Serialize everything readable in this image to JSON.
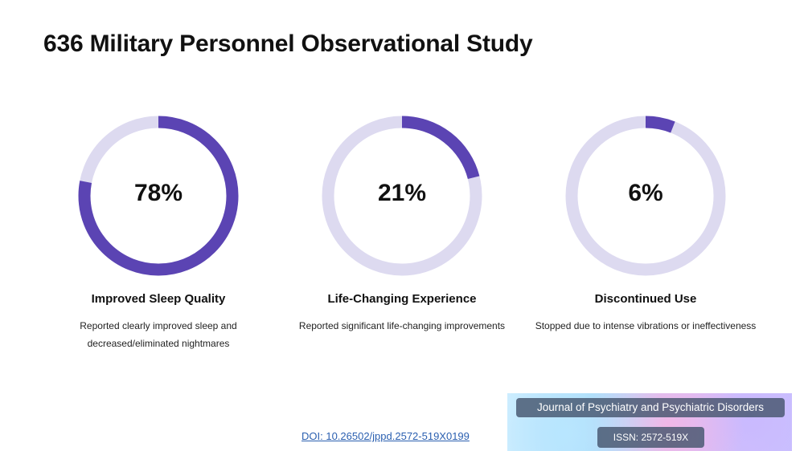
{
  "title": "636 Military Personnel Observational Study",
  "chart_data": {
    "type": "pie",
    "style": "donut",
    "items": [
      {
        "value": 78,
        "display": "78%",
        "label": "Improved Sleep Quality",
        "description": "Reported clearly improved sleep and decreased/eliminated nightmares"
      },
      {
        "value": 21,
        "display": "21%",
        "label": "Life-Changing Experience",
        "description": "Reported significant life-changing improvements"
      },
      {
        "value": 6,
        "display": "6%",
        "label": "Discontinued Use",
        "description": "Stopped due to intense vibrations or ineffectiveness"
      }
    ]
  },
  "colors": {
    "accent": "#5b44b3",
    "track": "#dddaf0"
  },
  "footer": {
    "doi": "DOI: 10.26502/jppd.2572-519X0199",
    "journal": "Journal of Psychiatry and Psychiatric Disorders",
    "issn": "ISSN: 2572-519X"
  }
}
